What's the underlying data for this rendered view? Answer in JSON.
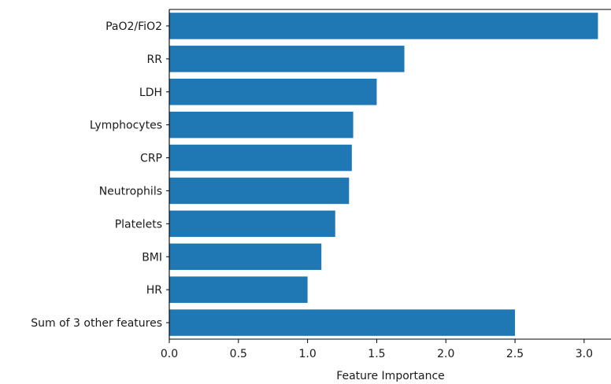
{
  "chart_data": {
    "type": "bar",
    "orientation": "horizontal",
    "categories": [
      "PaO2/FiO2",
      "RR",
      "LDH",
      "Lymphocytes",
      "CRP",
      "Neutrophils",
      "Platelets",
      "BMI",
      "HR",
      "Sum of 3 other features"
    ],
    "values": [
      3.1,
      1.7,
      1.5,
      1.33,
      1.32,
      1.3,
      1.2,
      1.1,
      1.0,
      2.5
    ],
    "title": "",
    "xlabel": "Feature Importance",
    "ylabel": "",
    "xlim": [
      0,
      3.2
    ],
    "xticks": [
      "0.0",
      "0.5",
      "1.0",
      "1.5",
      "2.0",
      "2.5",
      "3.0"
    ],
    "grid": false,
    "bar_color": "#1f77b4"
  }
}
